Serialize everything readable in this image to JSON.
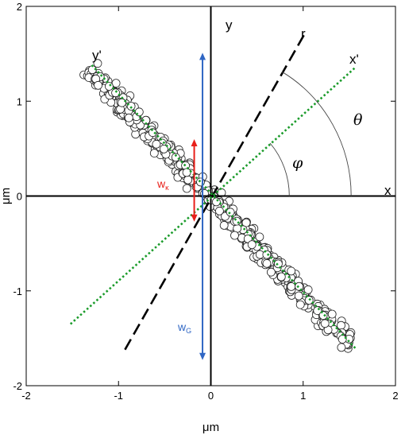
{
  "chart_data": {
    "type": "scatter",
    "xlabel": "μm",
    "ylabel": "μm",
    "xlim": [
      -2,
      2
    ],
    "ylim": [
      -2,
      2
    ],
    "x_ticks": [
      -2,
      -1,
      0,
      1,
      2
    ],
    "y_ticks": [
      -2,
      -1,
      0,
      1,
      2
    ],
    "x_tick_labels": [
      "-2",
      "-1",
      "0",
      "1",
      "2"
    ],
    "y_tick_labels": [
      "-2",
      "-1",
      "0",
      "1",
      "2"
    ],
    "grid": false,
    "point_cloud": {
      "from": [
        -1.32,
        1.33
      ],
      "to": [
        1.52,
        -1.58
      ],
      "half_width": 0.14,
      "count": 620
    },
    "lines": [
      {
        "id": "x-axis",
        "from": [
          -2,
          0
        ],
        "to": [
          2,
          0
        ],
        "style": "solid",
        "color": "#000000"
      },
      {
        "id": "y-axis",
        "from": [
          0,
          -2
        ],
        "to": [
          0,
          2
        ],
        "style": "solid",
        "color": "#000000"
      },
      {
        "id": "r-line",
        "from": [
          -0.93,
          -1.62
        ],
        "to": [
          1.01,
          1.7
        ],
        "style": "dashed",
        "color": "#000000"
      },
      {
        "id": "x-prime-line",
        "from": [
          -1.52,
          -1.35
        ],
        "to": [
          1.57,
          1.36
        ],
        "style": "dotted",
        "color": "#1a9b2a"
      },
      {
        "id": "y-prime-line",
        "from": [
          -1.29,
          1.38
        ],
        "to": [
          1.57,
          -1.61
        ],
        "style": "dotted",
        "color": "#1a9b2a"
      }
    ],
    "arrows": [
      {
        "id": "w-kappa-arrow",
        "x": -0.18,
        "y_from": -0.27,
        "y_to": 0.6,
        "color": "#e8201a"
      },
      {
        "id": "w-g-arrow",
        "x": -0.09,
        "y_from": -1.73,
        "y_to": 1.51,
        "color": "#2f66c4"
      }
    ],
    "angles": [
      {
        "id": "phi-arc",
        "radius": 0.85,
        "from_deg": 0,
        "to_deg": 41
      },
      {
        "id": "theta-arc",
        "radius": 1.52,
        "from_deg": 0,
        "to_deg": 59.5
      }
    ],
    "annotations": {
      "x": "x",
      "y": "y",
      "r": "r",
      "x_prime": "x'",
      "y_prime": "y'",
      "phi": "φ",
      "theta": "θ",
      "w_kappa": "w",
      "w_kappa_sub": "κ",
      "w_g": "w",
      "w_g_sub": "G"
    }
  },
  "colors": {
    "green_line": "#1a9b2a",
    "red_arrow": "#e8201a",
    "blue_arrow": "#2f66c4"
  }
}
